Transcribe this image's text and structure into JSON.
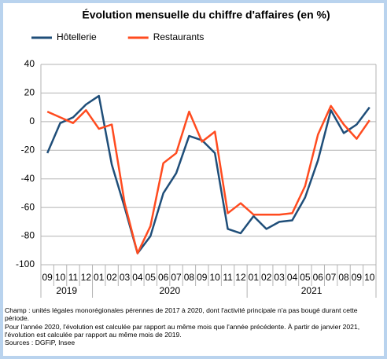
{
  "chart_data": {
    "type": "line",
    "title": "Évolution mensuelle du chiffre d'affaires (en %)",
    "categories": [
      "09",
      "10",
      "11",
      "12",
      "01",
      "02",
      "03",
      "04",
      "05",
      "06",
      "07",
      "08",
      "09",
      "10",
      "11",
      "12",
      "01",
      "02",
      "03",
      "04",
      "05",
      "06",
      "07",
      "08",
      "09",
      "10"
    ],
    "x_groups": [
      "2019",
      "2020",
      "2021"
    ],
    "series": [
      {
        "name": "Hôtellerie",
        "color": "#1f4e79",
        "values": [
          -22,
          -1,
          3,
          12,
          18,
          -30,
          -60,
          -92,
          -80,
          -50,
          -36,
          -10,
          -13,
          -22,
          -75,
          -78,
          -66,
          -75,
          -70,
          -69,
          -53,
          -27,
          8,
          -8,
          -2,
          10
        ]
      },
      {
        "name": "Restaurants",
        "color": "#ff4b1f",
        "values": [
          7,
          3,
          -1,
          8,
          -5,
          -2,
          -57,
          -92,
          -73,
          -29,
          -22,
          7,
          -14,
          -7,
          -64,
          -57,
          -65,
          -65,
          -65,
          -64,
          -45,
          -9,
          11,
          -2,
          -12,
          1
        ]
      }
    ],
    "ylim": [
      -100,
      40
    ],
    "yticks": [
      -100,
      -80,
      -60,
      -40,
      -20,
      0,
      20,
      40
    ],
    "grid": true,
    "legend": "top",
    "notes": [
      "Champ : unités légales monorégionales pérennes de 2017 à 2020, dont l'activité principale n'a pas bougé durant cette période.",
      "Pour l'année 2020, l'évolution est calculée par rapport au même mois que l'année précédente. À partir de janvier 2021, l'évolution est calculée par rapport au même mois de 2019.",
      "Sources : DGFiP, Insee"
    ]
  }
}
